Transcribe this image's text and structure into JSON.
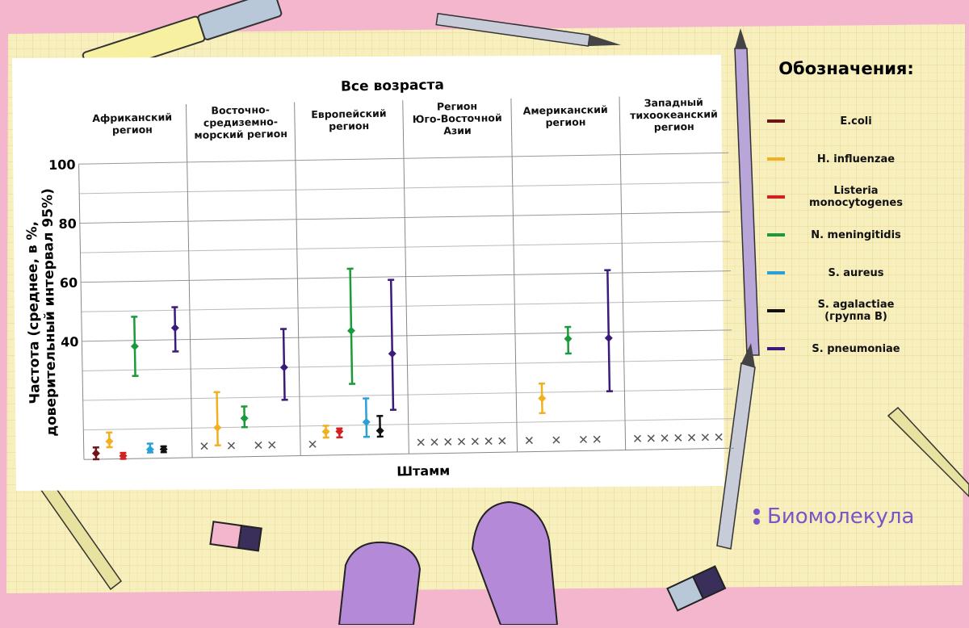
{
  "chart_data": {
    "type": "errorbar",
    "title": "Все возраста",
    "x_label": "Штамм",
    "y_label": "Частота (среднее, в %,\nдоверительный интервал 95%)",
    "legend_title": "Обозначения:",
    "watermark": "Биомолекула",
    "categories": [
      "Африканский\nрегион",
      "Восточно-\nсредиземно-\nморский регион",
      "Европейский\nрегион",
      "Регион\nЮго-Восточной\nАзии",
      "Американский\nрегион",
      "Западный\nтихоокеанский\nрегион"
    ],
    "ylim": [
      0,
      100
    ],
    "yticks": [
      40,
      60,
      80,
      100
    ],
    "y_minor_ticks": [
      10,
      20,
      30,
      50,
      70,
      90
    ],
    "grid": true,
    "series": [
      {
        "name": "E.coli",
        "color": "#6e1616",
        "values": [
          2,
          null,
          null,
          null,
          null,
          null
        ],
        "lower": [
          0,
          null,
          null,
          null,
          null,
          null
        ],
        "upper": [
          4,
          null,
          null,
          null,
          null,
          null
        ]
      },
      {
        "name": "H. influenzae",
        "color": "#f0b020",
        "values": [
          6,
          10,
          8,
          null,
          18,
          null
        ],
        "lower": [
          4,
          4,
          6,
          null,
          13,
          null
        ],
        "upper": [
          9,
          22,
          10,
          null,
          23,
          null
        ]
      },
      {
        "name": "Listeria monocytogenes",
        "color": "#d42020",
        "values": [
          1,
          null,
          8,
          null,
          null,
          null
        ],
        "lower": [
          0,
          null,
          6,
          null,
          null,
          null
        ],
        "upper": [
          2,
          null,
          9,
          null,
          null,
          null
        ]
      },
      {
        "name": "N. meningitidis",
        "color": "#1a9a3a",
        "values": [
          38,
          13,
          42,
          null,
          38,
          null
        ],
        "lower": [
          28,
          10,
          24,
          null,
          33,
          null
        ],
        "upper": [
          48,
          17,
          63,
          null,
          42,
          null
        ]
      },
      {
        "name": "S. aureus",
        "color": "#2aa0d8",
        "values": [
          3,
          null,
          11,
          null,
          null,
          null
        ],
        "lower": [
          2,
          null,
          6,
          null,
          null,
          null
        ],
        "upper": [
          5,
          null,
          19,
          null,
          null,
          null
        ]
      },
      {
        "name": "S. agalactiae (группа B)",
        "color": "#111111",
        "values": [
          3,
          null,
          8,
          null,
          null,
          null
        ],
        "lower": [
          2,
          null,
          6,
          null,
          null,
          null
        ],
        "upper": [
          4,
          null,
          13,
          null,
          null,
          null
        ]
      },
      {
        "name": "S. pneumoniae",
        "color": "#3a1a7a",
        "values": [
          44,
          30,
          34,
          null,
          38,
          null
        ],
        "lower": [
          36,
          19,
          15,
          null,
          20,
          null
        ],
        "upper": [
          51,
          43,
          59,
          null,
          61,
          null
        ]
      }
    ]
  }
}
